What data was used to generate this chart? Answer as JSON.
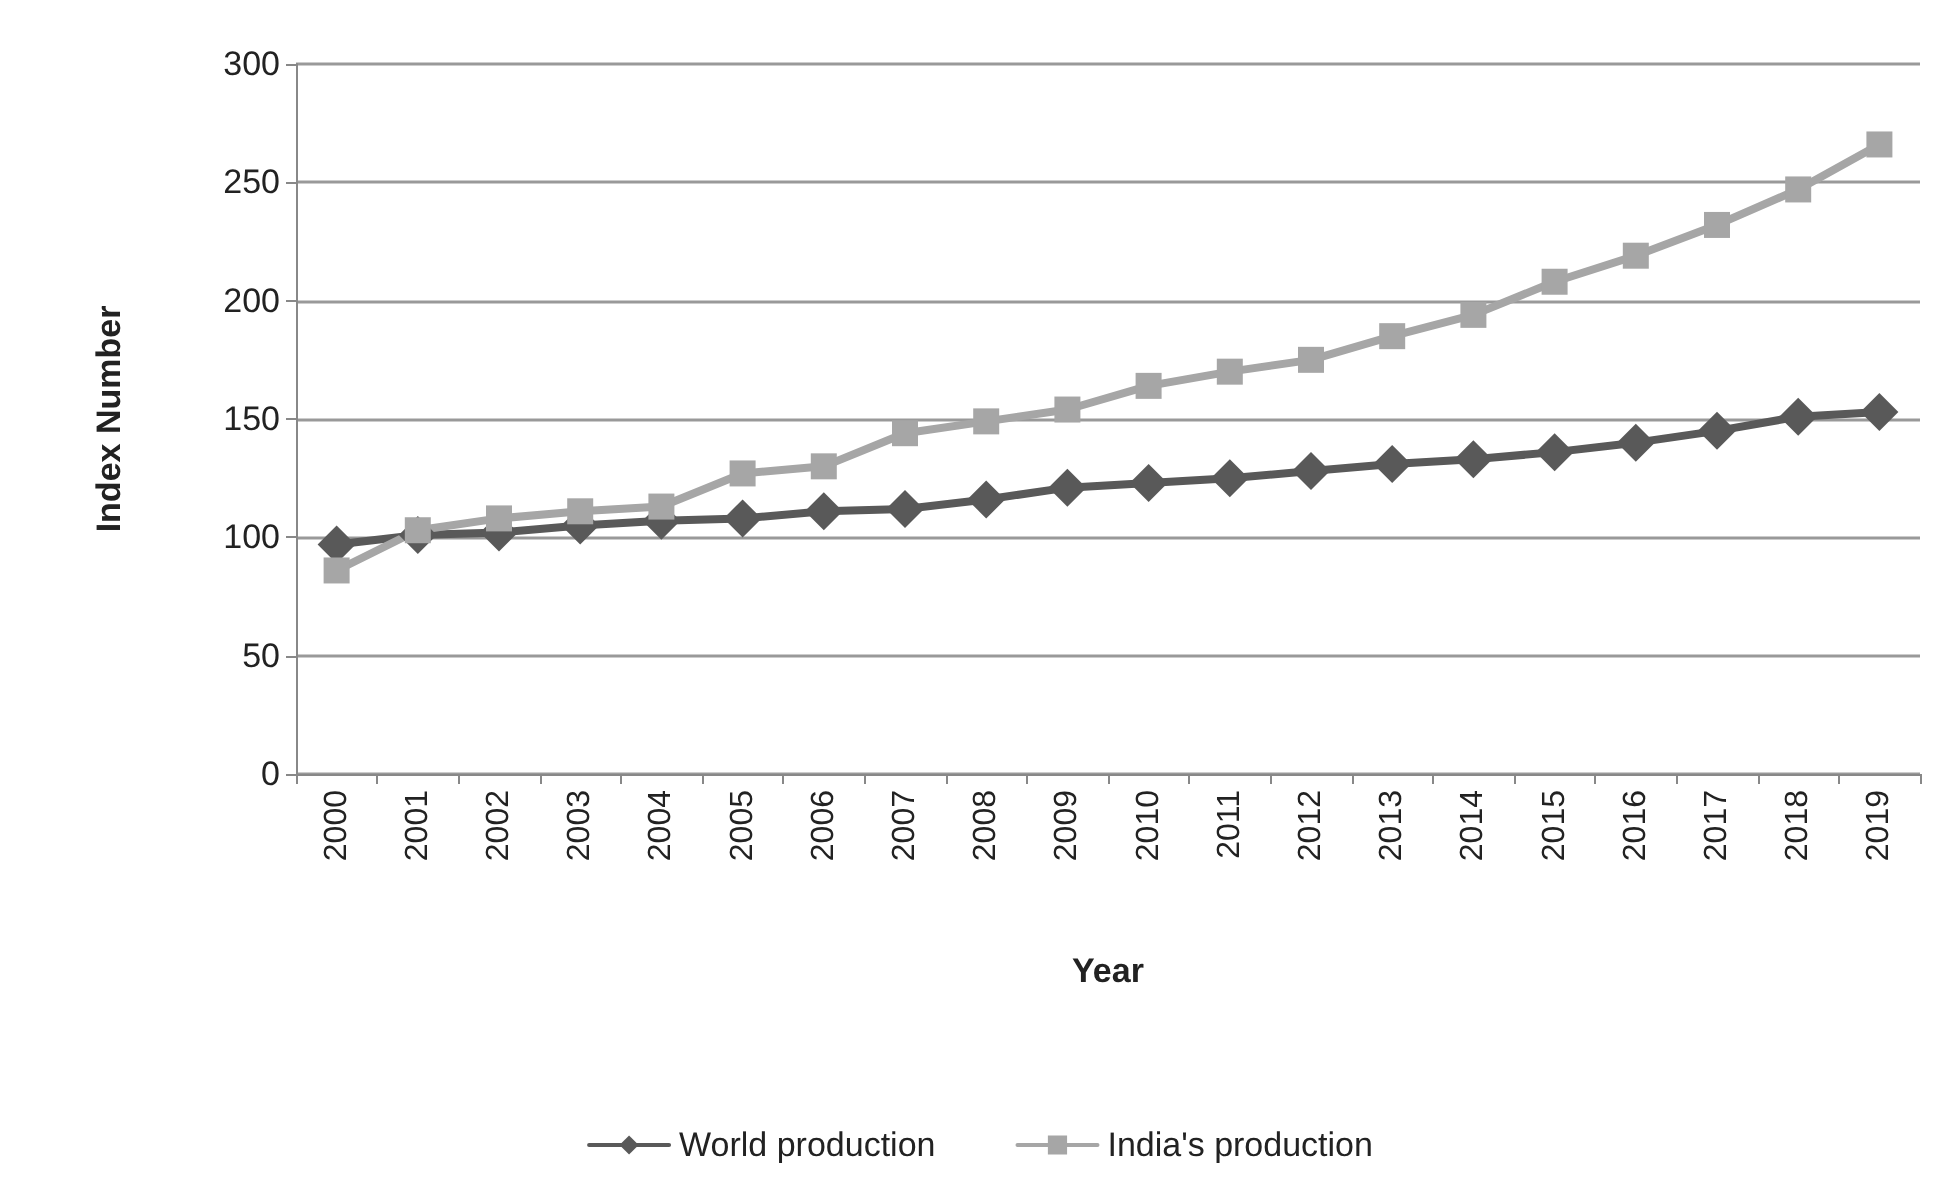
{
  "chart_data": {
    "type": "line",
    "xlabel": "Year",
    "ylabel": "Index Number",
    "categories": [
      "2000",
      "2001",
      "2002",
      "2003",
      "2004",
      "2005",
      "2006",
      "2007",
      "2008",
      "2009",
      "2010",
      "2011",
      "2012",
      "2013",
      "2014",
      "2015",
      "2016",
      "2017",
      "2018",
      "2019"
    ],
    "series": [
      {
        "name": "World production",
        "color": "#595959",
        "marker": "diamond",
        "values": [
          97,
          101,
          102,
          105,
          107,
          108,
          111,
          112,
          116,
          121,
          123,
          125,
          128,
          131,
          133,
          136,
          140,
          145,
          151,
          153
        ]
      },
      {
        "name": "India's production",
        "color": "#a6a6a6",
        "marker": "square",
        "values": [
          86,
          103,
          108,
          111,
          113,
          127,
          130,
          144,
          149,
          154,
          164,
          170,
          175,
          185,
          194,
          208,
          219,
          232,
          247,
          266
        ]
      }
    ],
    "ylim": [
      0,
      300
    ],
    "yticks": [
      0,
      50,
      100,
      150,
      200,
      250,
      300
    ],
    "grid": "y",
    "legend": "bottom"
  }
}
